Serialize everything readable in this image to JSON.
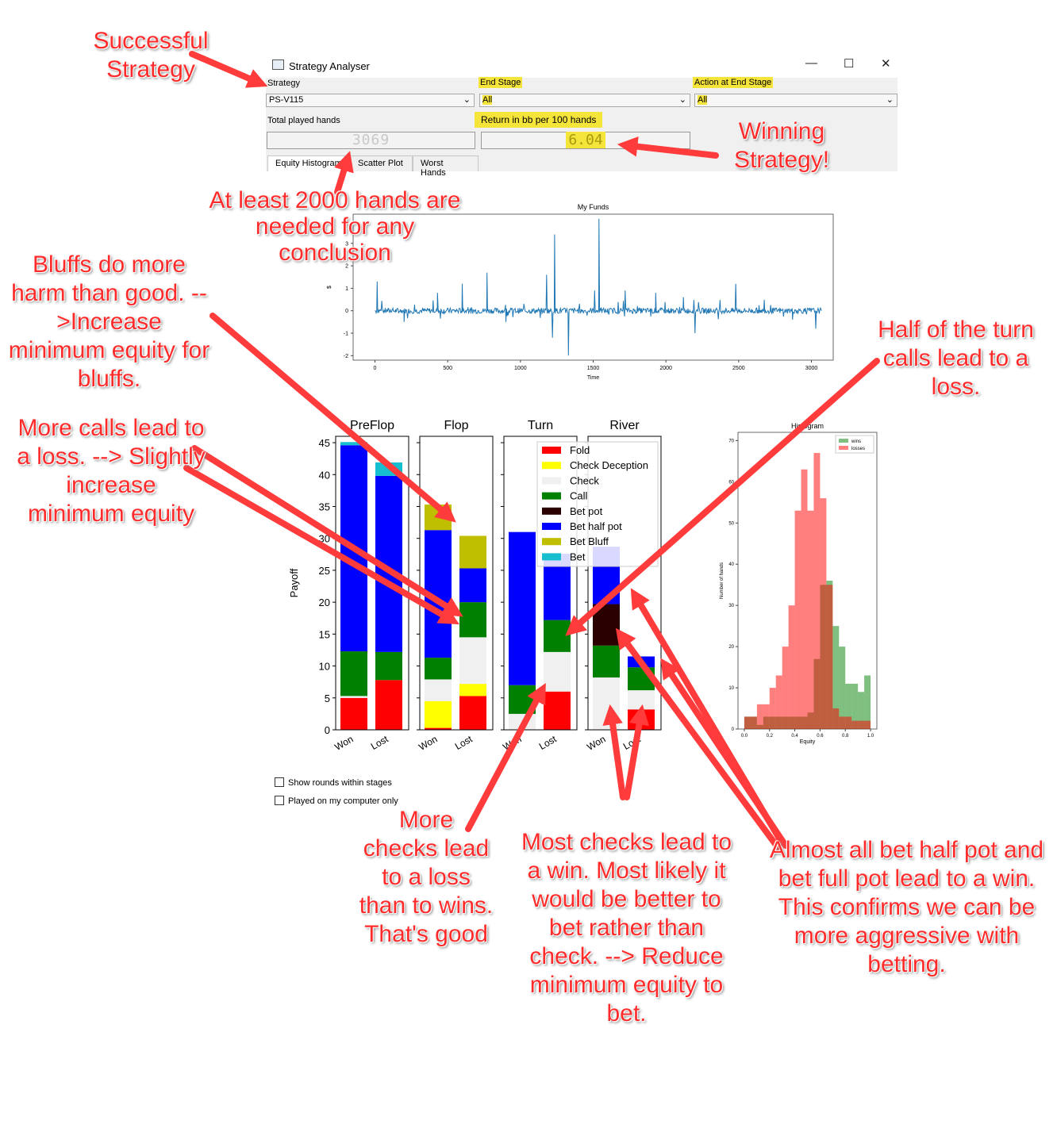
{
  "window": {
    "title": "Strategy Analyser",
    "minimize": "—",
    "maximize": "☐",
    "close": "✕"
  },
  "form": {
    "strategy_label": "Strategy",
    "strategy_value": "PS-V115",
    "end_stage_label": "End Stage",
    "end_stage_value": "All",
    "action_label": "Action at End Stage",
    "action_value": "All",
    "total_hands_label": "Total played hands",
    "total_hands_value": "3069",
    "return_label": "Return in bb per 100 hands",
    "return_value": "6.04"
  },
  "tabs": [
    "Equity Histogram",
    "Scatter Plot",
    "Worst Hands"
  ],
  "checkboxes": [
    "Show rounds within stages",
    "Played on my computer only"
  ],
  "colors": {
    "Fold": "#ff0000",
    "Check Deception": "#ffff00",
    "Check": "#f0f0f0",
    "Call": "#008000",
    "Bet pot": "#2b0000",
    "Bet half pot": "#0000ff",
    "Bet Bluff": "#bfbf00",
    "Bet": "#17becf",
    "line": "#1f77b4",
    "wins": "#59b859",
    "losses": "#ff6666",
    "annotation": "#ff2a2a"
  },
  "chart_data": [
    {
      "type": "line",
      "title": "My Funds",
      "xlabel": "Time",
      "ylabel": "$",
      "xlim": [
        -150,
        3150
      ],
      "ylim": [
        -2.2,
        4.3
      ],
      "xticks": [
        0,
        500,
        1000,
        1500,
        2000,
        2500,
        3000
      ],
      "yticks": [
        -2,
        -1,
        0,
        1,
        2,
        3
      ],
      "spikes": [
        [
          0,
          0
        ],
        [
          15,
          1.3
        ],
        [
          200,
          -0.5
        ],
        [
          430,
          0.8
        ],
        [
          600,
          1.2
        ],
        [
          770,
          1.7
        ],
        [
          900,
          -0.5
        ],
        [
          1180,
          1.6
        ],
        [
          1220,
          -1.2
        ],
        [
          1235,
          3.4
        ],
        [
          1330,
          -2.0
        ],
        [
          1510,
          0.9
        ],
        [
          1540,
          4.1
        ],
        [
          1720,
          0.9
        ],
        [
          1930,
          0.8
        ],
        [
          2120,
          0.6
        ],
        [
          2200,
          -1.0
        ],
        [
          2480,
          1.2
        ],
        [
          2870,
          -0.4
        ],
        [
          3030,
          -0.8
        ],
        [
          3069,
          0
        ]
      ]
    },
    {
      "type": "bar",
      "ylabel": "Payoff",
      "ylim": [
        0,
        46
      ],
      "yticks": [
        0,
        5,
        10,
        15,
        20,
        25,
        30,
        35,
        40,
        45
      ],
      "categories": [
        "Won",
        "Lost"
      ],
      "legend": [
        "Fold",
        "Check Deception",
        "Check",
        "Call",
        "Bet pot",
        "Bet half pot",
        "Bet Bluff",
        "Bet"
      ],
      "panels": [
        {
          "name": "PreFlop",
          "Won": {
            "Fold": 5,
            "Check": 0.3,
            "Call": 7,
            "Bet half pot": 32.3,
            "Bet": 0.5
          },
          "Lost": {
            "Fold": 7.8,
            "Call": 4.4,
            "Bet half pot": 27.6,
            "Bet": 2.1
          }
        },
        {
          "name": "Flop",
          "Won": {
            "Fold": 0.3,
            "Check Deception": 4.2,
            "Check": 3.4,
            "Call": 3.4,
            "Bet half pot": 20,
            "Bet Bluff": 4
          },
          "Lost": {
            "Fold": 5.3,
            "Check Deception": 1.9,
            "Check": 7.3,
            "Call": 5.5,
            "Bet half pot": 5.3,
            "Bet Bluff": 5.1
          }
        },
        {
          "name": "Turn",
          "Won": {
            "Check": 2.5,
            "Call": 4.5,
            "Bet half pot": 24
          },
          "Lost": {
            "Fold": 6,
            "Check": 6.2,
            "Call": 5,
            "Bet half pot": 10.4
          }
        },
        {
          "name": "River",
          "Won": {
            "Check": 8.2,
            "Call": 5,
            "Bet pot": 6.5,
            "Bet half pot": 9
          },
          "Lost": {
            "Fold": 3.2,
            "Check": 3,
            "Call": 3.6,
            "Bet half pot": 1.7
          }
        }
      ]
    },
    {
      "type": "bar",
      "title": "Histogram",
      "xlabel": "Equity",
      "ylabel": "Number of hands",
      "xlim": [
        -0.05,
        1.05
      ],
      "ylim": [
        0,
        72
      ],
      "xticks": [
        0.0,
        0.2,
        0.4,
        0.6,
        0.8,
        1.0
      ],
      "yticks": [
        0,
        10,
        20,
        30,
        40,
        50,
        60,
        70
      ],
      "bin_width": 0.05,
      "series": [
        {
          "name": "wins",
          "x": [
            0.0,
            0.05,
            0.1,
            0.15,
            0.2,
            0.25,
            0.3,
            0.35,
            0.4,
            0.45,
            0.5,
            0.55,
            0.6,
            0.65,
            0.7,
            0.75,
            0.8,
            0.85,
            0.9,
            0.95
          ],
          "values": [
            3,
            3,
            1,
            3,
            3,
            3,
            3,
            3,
            3,
            3,
            4,
            17,
            35,
            36,
            25,
            20,
            11,
            11,
            9,
            13
          ]
        },
        {
          "name": "losses",
          "x": [
            0.0,
            0.05,
            0.1,
            0.15,
            0.2,
            0.25,
            0.3,
            0.35,
            0.4,
            0.45,
            0.5,
            0.55,
            0.6,
            0.65,
            0.7,
            0.75,
            0.8,
            0.85,
            0.9,
            0.95
          ],
          "values": [
            3,
            3,
            6,
            6,
            10,
            13,
            20,
            30,
            53,
            63,
            53,
            67,
            56,
            35,
            5,
            3,
            3,
            2,
            2,
            2
          ]
        }
      ]
    }
  ],
  "annotations": [
    "Successful Strategy",
    "Winning Strategy!",
    "At least 2000 hands are needed for any conclusion",
    "Bluffs do more harm than good. -->Increase minimum equity for bluffs.",
    "More calls lead to a loss. --> Slightly increase minimum equity",
    "Half of the turn calls lead to a loss.",
    "More checks lead to a loss than to wins. That's good",
    "Most checks lead to a win. Most likely it would be better to bet rather than check. --> Reduce minimum equity to bet.",
    "Almost all bet half pot and bet full pot lead to a win. This confirms we can be more aggressive with betting."
  ]
}
